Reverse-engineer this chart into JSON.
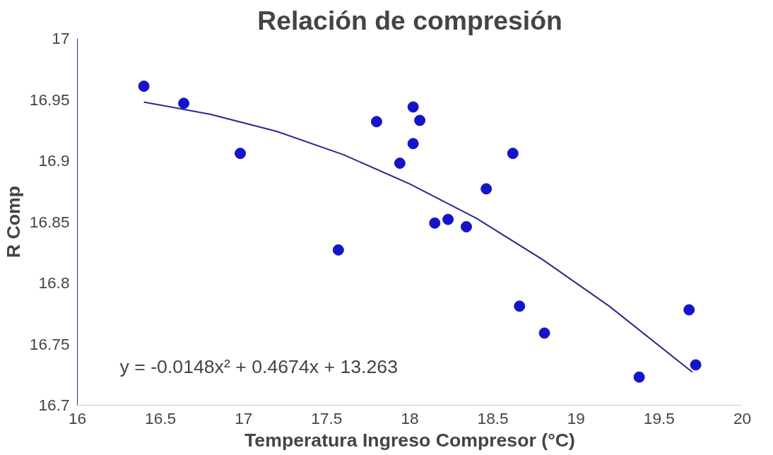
{
  "chart_data": {
    "type": "scatter",
    "title": "Relación de compresión",
    "xlabel": "Temperatura Ingreso Compresor (°C)",
    "ylabel": "R Comp",
    "xlim": [
      16,
      20
    ],
    "xticks": [
      16,
      16.5,
      17,
      17.5,
      18,
      18.5,
      19,
      19.5,
      20
    ],
    "ylim": [
      16.7,
      17
    ],
    "yticks": [
      16.7,
      16.75,
      16.8,
      16.85,
      16.9,
      16.95,
      17
    ],
    "grid": false,
    "marker": "circle",
    "annotations": [
      "y = -0.0148x² + 0.4674x + 13.263"
    ],
    "series": [
      {
        "color": "#1414c8",
        "x": [
          16.4,
          16.64,
          16.98,
          17.57,
          17.8,
          17.94,
          18.02,
          18.02,
          18.06,
          18.15,
          18.23,
          18.34,
          18.46,
          18.62,
          18.66,
          18.81,
          19.38,
          19.68,
          19.72
        ],
        "values": [
          16.961,
          16.947,
          16.906,
          16.827,
          16.932,
          16.898,
          16.944,
          16.914,
          16.933,
          16.849,
          16.852,
          16.846,
          16.877,
          16.906,
          16.781,
          16.759,
          16.723,
          16.778,
          16.733
        ]
      },
      {
        "type": "line",
        "color": "#2a2a8a",
        "marker": "none",
        "line_style": "solid",
        "x": [
          16.4,
          16.8,
          17.2,
          17.6,
          18.0,
          18.4,
          18.8,
          19.2,
          19.7
        ],
        "values": [
          16.948,
          16.938,
          16.924,
          16.905,
          16.881,
          16.853,
          16.819,
          16.781,
          16.727
        ]
      }
    ]
  }
}
